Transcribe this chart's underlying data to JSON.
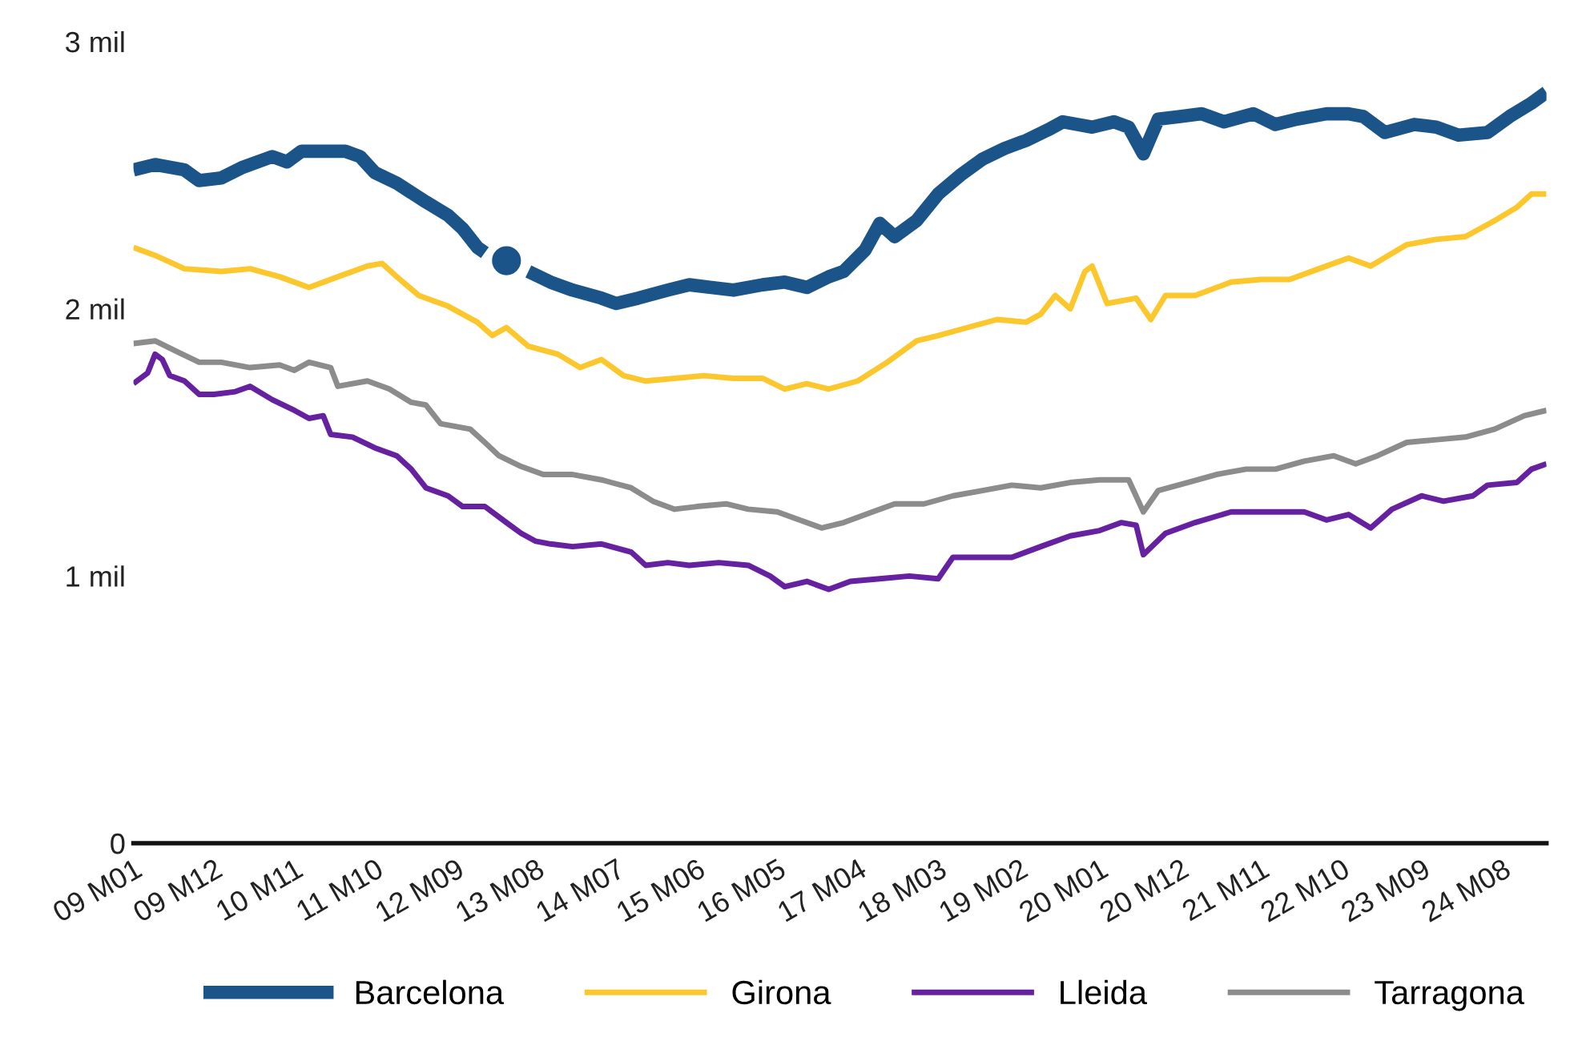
{
  "chart_data": {
    "type": "line",
    "series": [
      {
        "name": "Barcelona",
        "color": "#1b5488",
        "x": [
          "2009-01",
          "2009-04",
          "2009-08",
          "2009-10",
          "2010-01",
          "2010-04",
          "2010-08",
          "2010-10",
          "2010-12",
          "2011-02",
          "2011-06",
          "2011-08",
          "2011-10",
          "2012-01",
          "2012-05",
          "2012-08",
          "2012-10",
          "2012-12",
          "2013-01",
          "2013-03",
          "2013-04",
          "2013-05",
          "2013-07",
          "2013-10",
          "2014-01",
          "2014-05",
          "2014-07",
          "2014-10",
          "2015-02",
          "2015-05",
          "2015-08",
          "2015-11",
          "2016-03",
          "2016-06",
          "2016-09",
          "2016-12",
          "2017-02",
          "2017-05",
          "2017-07",
          "2017-09",
          "2017-12",
          "2018-03",
          "2018-06",
          "2018-09",
          "2018-12",
          "2019-03",
          "2019-06",
          "2019-08",
          "2019-12",
          "2020-03",
          "2020-05",
          "2020-07",
          "2020-09",
          "2020-12",
          "2021-03",
          "2021-06",
          "2021-10",
          "2022-01",
          "2022-04",
          "2022-08",
          "2022-11",
          "2023-01",
          "2023-04",
          "2023-08",
          "2023-11",
          "2024-02",
          "2024-06",
          "2024-09",
          "2024-12",
          "2025-02"
        ],
        "values": [
          2.52,
          2.54,
          2.52,
          2.48,
          2.49,
          2.53,
          2.57,
          2.55,
          2.59,
          2.59,
          2.59,
          2.57,
          2.51,
          2.47,
          2.4,
          2.35,
          2.3,
          2.23,
          2.21,
          null,
          2.18,
          null,
          2.14,
          2.1,
          2.07,
          2.04,
          2.02,
          2.04,
          2.07,
          2.09,
          2.08,
          2.07,
          2.09,
          2.1,
          2.08,
          2.12,
          2.14,
          2.22,
          2.32,
          2.27,
          2.33,
          2.43,
          2.5,
          2.56,
          2.6,
          2.63,
          2.67,
          2.7,
          2.68,
          2.7,
          2.68,
          2.58,
          2.71,
          2.72,
          2.73,
          2.7,
          2.73,
          2.69,
          2.71,
          2.73,
          2.73,
          2.72,
          2.66,
          2.69,
          2.68,
          2.65,
          2.66,
          2.72,
          2.77,
          2.81
        ]
      },
      {
        "name": "Girona",
        "color": "#fcc72c",
        "x": [
          "2009-01",
          "2009-04",
          "2009-08",
          "2010-01",
          "2010-05",
          "2010-09",
          "2011-01",
          "2011-05",
          "2011-09",
          "2011-11",
          "2012-01",
          "2012-04",
          "2012-08",
          "2012-12",
          "2013-02",
          "2013-04",
          "2013-07",
          "2013-11",
          "2014-02",
          "2014-05",
          "2014-08",
          "2014-11",
          "2015-03",
          "2015-07",
          "2015-11",
          "2016-03",
          "2016-06",
          "2016-09",
          "2016-12",
          "2017-04",
          "2017-08",
          "2017-12",
          "2018-03",
          "2018-07",
          "2018-11",
          "2019-03",
          "2019-05",
          "2019-07",
          "2019-09",
          "2019-11",
          "2019-12",
          "2020-02",
          "2020-06",
          "2020-08",
          "2020-10",
          "2021-02",
          "2021-07",
          "2021-11",
          "2022-03",
          "2022-07",
          "2022-11",
          "2023-02",
          "2023-07",
          "2023-11",
          "2024-03",
          "2024-07",
          "2024-10",
          "2024-12",
          "2025-02"
        ],
        "values": [
          2.23,
          2.2,
          2.15,
          2.14,
          2.15,
          2.12,
          2.08,
          2.12,
          2.16,
          2.17,
          2.12,
          2.05,
          2.01,
          1.95,
          1.9,
          1.93,
          1.86,
          1.83,
          1.78,
          1.81,
          1.75,
          1.73,
          1.74,
          1.75,
          1.74,
          1.74,
          1.7,
          1.72,
          1.7,
          1.73,
          1.8,
          1.88,
          1.9,
          1.93,
          1.96,
          1.95,
          1.98,
          2.05,
          2.0,
          2.14,
          2.16,
          2.02,
          2.04,
          1.96,
          2.05,
          2.05,
          2.1,
          2.11,
          2.11,
          2.15,
          2.19,
          2.16,
          2.24,
          2.26,
          2.27,
          2.33,
          2.38,
          2.43,
          2.43
        ]
      },
      {
        "name": "Lleida",
        "color": "#6621a0",
        "x": [
          "2009-01",
          "2009-03",
          "2009-04",
          "2009-05",
          "2009-06",
          "2009-08",
          "2009-10",
          "2009-12",
          "2010-03",
          "2010-05",
          "2010-08",
          "2010-11",
          "2011-01",
          "2011-03",
          "2011-04",
          "2011-07",
          "2011-10",
          "2012-01",
          "2012-03",
          "2012-05",
          "2012-08",
          "2012-10",
          "2013-01",
          "2013-04",
          "2013-06",
          "2013-08",
          "2013-10",
          "2014-01",
          "2014-05",
          "2014-09",
          "2014-11",
          "2015-02",
          "2015-05",
          "2015-09",
          "2016-01",
          "2016-04",
          "2016-06",
          "2016-09",
          "2016-12",
          "2017-03",
          "2017-07",
          "2017-11",
          "2018-03",
          "2018-05",
          "2018-09",
          "2019-01",
          "2019-05",
          "2019-09",
          "2020-01",
          "2020-04",
          "2020-06",
          "2020-07",
          "2020-10",
          "2021-02",
          "2021-07",
          "2021-12",
          "2022-05",
          "2022-08",
          "2022-11",
          "2023-02",
          "2023-05",
          "2023-09",
          "2023-12",
          "2024-04",
          "2024-06",
          "2024-10",
          "2024-12",
          "2025-02"
        ],
        "values": [
          1.72,
          1.76,
          1.83,
          1.81,
          1.75,
          1.73,
          1.68,
          1.68,
          1.69,
          1.71,
          1.66,
          1.62,
          1.59,
          1.6,
          1.53,
          1.52,
          1.48,
          1.45,
          1.4,
          1.33,
          1.3,
          1.26,
          1.26,
          1.2,
          1.16,
          1.13,
          1.12,
          1.11,
          1.12,
          1.09,
          1.04,
          1.05,
          1.04,
          1.05,
          1.04,
          1.0,
          0.96,
          0.98,
          0.95,
          0.98,
          0.99,
          1.0,
          0.99,
          1.07,
          1.07,
          1.07,
          1.11,
          1.15,
          1.17,
          1.2,
          1.19,
          1.08,
          1.16,
          1.2,
          1.24,
          1.24,
          1.24,
          1.21,
          1.23,
          1.18,
          1.25,
          1.3,
          1.28,
          1.3,
          1.34,
          1.35,
          1.4,
          1.42
        ]
      },
      {
        "name": "Tarragona",
        "color": "#8c8c8c",
        "x": [
          "2009-01",
          "2009-04",
          "2009-07",
          "2009-10",
          "2010-01",
          "2010-05",
          "2010-09",
          "2010-11",
          "2011-01",
          "2011-04",
          "2011-05",
          "2011-09",
          "2011-12",
          "2012-03",
          "2012-05",
          "2012-07",
          "2012-11",
          "2013-01",
          "2013-03",
          "2013-06",
          "2013-09",
          "2014-01",
          "2014-05",
          "2014-09",
          "2014-12",
          "2015-03",
          "2015-06",
          "2015-10",
          "2016-01",
          "2016-05",
          "2016-08",
          "2016-11",
          "2017-02",
          "2017-06",
          "2017-09",
          "2018-01",
          "2018-05",
          "2018-09",
          "2019-01",
          "2019-05",
          "2019-09",
          "2020-01",
          "2020-05",
          "2020-07",
          "2020-09",
          "2021-01",
          "2021-05",
          "2021-09",
          "2022-01",
          "2022-05",
          "2022-09",
          "2022-12",
          "2023-03",
          "2023-07",
          "2023-11",
          "2024-03",
          "2024-07",
          "2024-11",
          "2025-02"
        ],
        "values": [
          1.87,
          1.88,
          1.84,
          1.8,
          1.8,
          1.78,
          1.79,
          1.77,
          1.8,
          1.78,
          1.71,
          1.73,
          1.7,
          1.65,
          1.64,
          1.57,
          1.55,
          1.5,
          1.45,
          1.41,
          1.38,
          1.38,
          1.36,
          1.33,
          1.28,
          1.25,
          1.26,
          1.27,
          1.25,
          1.24,
          1.21,
          1.18,
          1.2,
          1.24,
          1.27,
          1.27,
          1.3,
          1.32,
          1.34,
          1.33,
          1.35,
          1.36,
          1.36,
          1.24,
          1.32,
          1.35,
          1.38,
          1.4,
          1.4,
          1.43,
          1.45,
          1.42,
          1.45,
          1.5,
          1.51,
          1.52,
          1.55,
          1.6,
          1.62
        ]
      }
    ],
    "xlim": [
      "2009-01",
      "2025-02"
    ],
    "xticks": [
      {
        "value": "2009-01",
        "label": "09 M01"
      },
      {
        "value": "2009-12",
        "label": "09 M12"
      },
      {
        "value": "2010-11",
        "label": "10 M11"
      },
      {
        "value": "2011-10",
        "label": "11 M10"
      },
      {
        "value": "2012-09",
        "label": "12 M09"
      },
      {
        "value": "2013-08",
        "label": "13 M08"
      },
      {
        "value": "2014-07",
        "label": "14 M07"
      },
      {
        "value": "2015-06",
        "label": "15 M06"
      },
      {
        "value": "2016-05",
        "label": "16 M05"
      },
      {
        "value": "2017-04",
        "label": "17 M04"
      },
      {
        "value": "2018-03",
        "label": "18 M03"
      },
      {
        "value": "2019-02",
        "label": "19 M02"
      },
      {
        "value": "2020-01",
        "label": "20 M01"
      },
      {
        "value": "2020-12",
        "label": "20 M12"
      },
      {
        "value": "2021-11",
        "label": "21 M11"
      },
      {
        "value": "2022-10",
        "label": "22 M10"
      },
      {
        "value": "2023-09",
        "label": "23 M09"
      },
      {
        "value": "2024-08",
        "label": "24 M08"
      }
    ],
    "ylim": [
      0,
      3
    ],
    "yticks": [
      {
        "value": 0,
        "label": "0"
      },
      {
        "value": 1,
        "label": "1 mil"
      },
      {
        "value": 2,
        "label": "2 mil"
      },
      {
        "value": 3,
        "label": "3 mil"
      }
    ],
    "grid": false,
    "legend": "bottom",
    "marker": "none",
    "line_style": "solid"
  }
}
